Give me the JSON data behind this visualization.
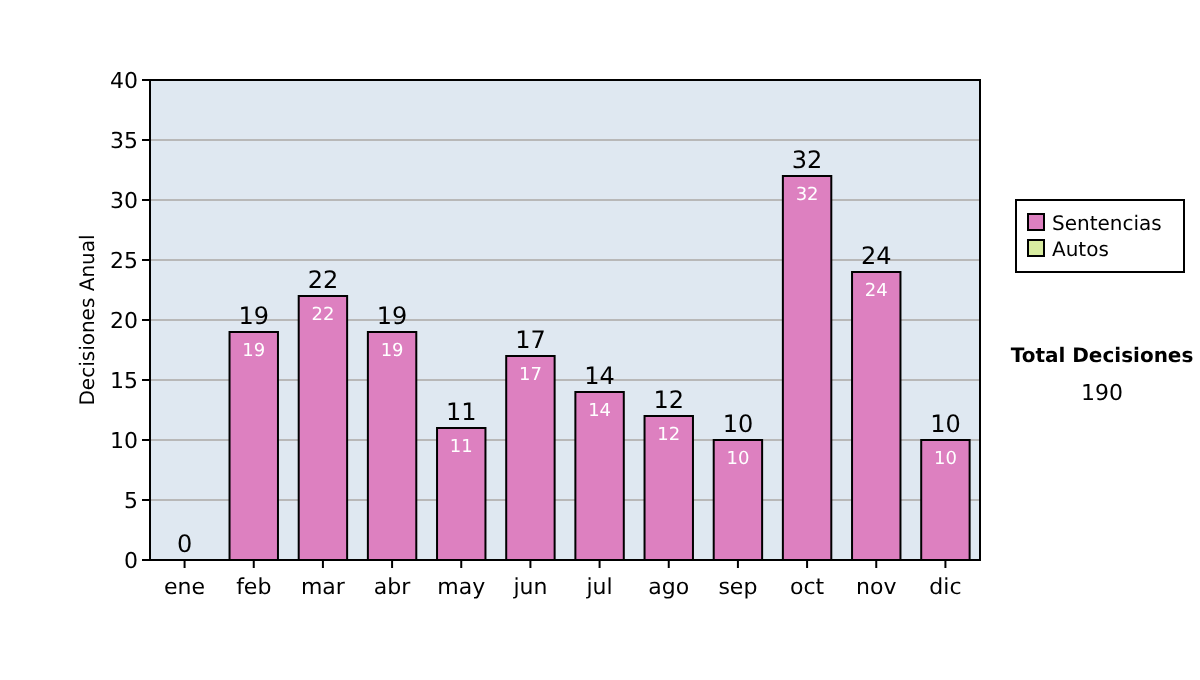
{
  "chart_data": {
    "type": "bar",
    "stacked": true,
    "ylabel": "Decisiones Anual",
    "categories": [
      "ene",
      "feb",
      "mar",
      "abr",
      "may",
      "jun",
      "jul",
      "ago",
      "sep",
      "oct",
      "nov",
      "dic"
    ],
    "series": [
      {
        "name": "Sentencias",
        "color": "#dd80c0",
        "values": [
          0,
          19,
          22,
          19,
          11,
          17,
          14,
          12,
          10,
          32,
          24,
          10
        ],
        "value_labels": [
          null,
          "19",
          "22",
          "19",
          "11",
          "17",
          "14",
          "12",
          "10",
          "32",
          "24",
          "10"
        ]
      },
      {
        "name": "Autos",
        "color": "#d8eca0",
        "values": [
          0,
          0,
          0,
          0,
          0,
          0,
          0,
          0,
          0,
          0,
          0,
          0
        ]
      }
    ],
    "totals": [
      "0",
      "19",
      "22",
      "19",
      "11",
      "17",
      "14",
      "12",
      "10",
      "32",
      "24",
      "10"
    ],
    "ylim": [
      0,
      40
    ],
    "yticks": [
      0,
      5,
      10,
      15,
      20,
      25,
      30,
      35,
      40
    ],
    "grid": "y",
    "legend": "right",
    "annotations": [
      "Total Decisiones",
      "190"
    ]
  }
}
